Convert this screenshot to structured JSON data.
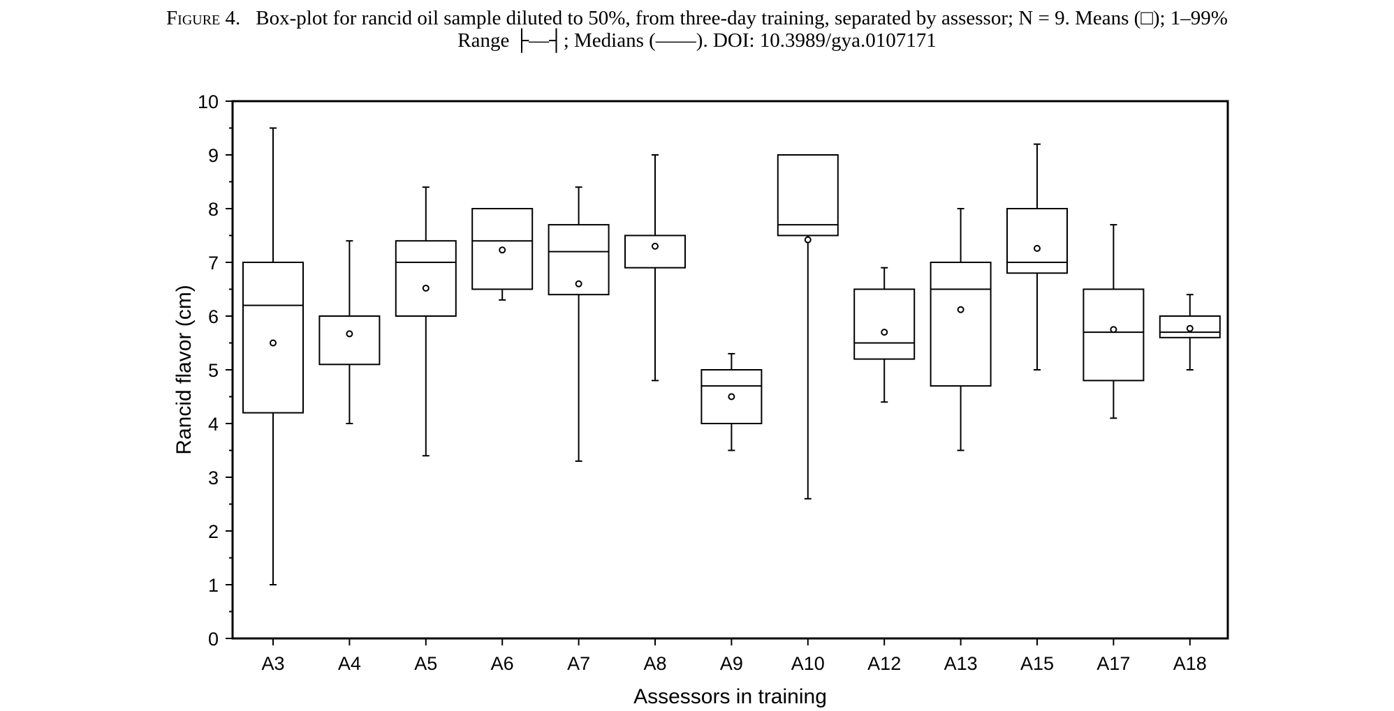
{
  "caption": {
    "figure_label": "Figure 4.",
    "line1": "Box-plot for rancid oil sample diluted to 50%, from three-day training, separated by assessor; N = 9. Means (□); 1–99%",
    "range_word": "Range",
    "range_symbol": "├—┤",
    "line2_rest": "; Medians (——). DOI: 10.3989/gya.0107171"
  },
  "chart_data": {
    "type": "box",
    "xlabel": "Assessors in training",
    "ylabel": "Rancid flavor (cm)",
    "ylim": [
      0,
      10
    ],
    "yticks": [
      0,
      1,
      2,
      3,
      4,
      5,
      6,
      7,
      8,
      9,
      10
    ],
    "categories": [
      "A3",
      "A4",
      "A5",
      "A6",
      "A7",
      "A8",
      "A9",
      "A10",
      "A12",
      "A13",
      "A15",
      "A17",
      "A18"
    ],
    "boxes": [
      {
        "category": "A3",
        "whisker_low": 1.0,
        "q1": 4.2,
        "median": 6.2,
        "q3": 7.0,
        "whisker_high": 9.5,
        "mean": 5.5
      },
      {
        "category": "A4",
        "whisker_low": 4.0,
        "q1": 5.1,
        "median": 6.0,
        "q3": 6.0,
        "whisker_high": 7.4,
        "mean": 5.67
      },
      {
        "category": "A5",
        "whisker_low": 3.4,
        "q1": 6.0,
        "median": 7.0,
        "q3": 7.4,
        "whisker_high": 8.4,
        "mean": 6.52
      },
      {
        "category": "A6",
        "whisker_low": 6.3,
        "q1": 6.5,
        "median": 7.4,
        "q3": 8.0,
        "whisker_high": 8.0,
        "mean": 7.23
      },
      {
        "category": "A7",
        "whisker_low": 3.3,
        "q1": 6.4,
        "median": 7.2,
        "q3": 7.7,
        "whisker_high": 8.4,
        "mean": 6.6
      },
      {
        "category": "A8",
        "whisker_low": 4.8,
        "q1": 6.9,
        "median": 7.5,
        "q3": 7.5,
        "whisker_high": 9.0,
        "mean": 7.3
      },
      {
        "category": "A9",
        "whisker_low": 3.5,
        "q1": 4.0,
        "median": 4.7,
        "q3": 5.0,
        "whisker_high": 5.3,
        "mean": 4.5
      },
      {
        "category": "A10",
        "whisker_low": 2.6,
        "q1": 7.5,
        "median": 7.7,
        "q3": 9.0,
        "whisker_high": 9.0,
        "mean": 7.42
      },
      {
        "category": "A12",
        "whisker_low": 4.4,
        "q1": 5.2,
        "median": 5.5,
        "q3": 6.5,
        "whisker_high": 6.9,
        "mean": 5.7
      },
      {
        "category": "A13",
        "whisker_low": 3.5,
        "q1": 4.7,
        "median": 6.5,
        "q3": 7.0,
        "whisker_high": 8.0,
        "mean": 6.12
      },
      {
        "category": "A15",
        "whisker_low": 5.0,
        "q1": 6.8,
        "median": 7.0,
        "q3": 8.0,
        "whisker_high": 9.2,
        "mean": 7.26
      },
      {
        "category": "A17",
        "whisker_low": 4.1,
        "q1": 4.8,
        "median": 5.7,
        "q3": 6.5,
        "whisker_high": 7.7,
        "mean": 5.75
      },
      {
        "category": "A18",
        "whisker_low": 5.0,
        "q1": 5.6,
        "median": 5.7,
        "q3": 6.0,
        "whisker_high": 6.4,
        "mean": 5.77
      }
    ],
    "grid": false,
    "legend": "none"
  }
}
